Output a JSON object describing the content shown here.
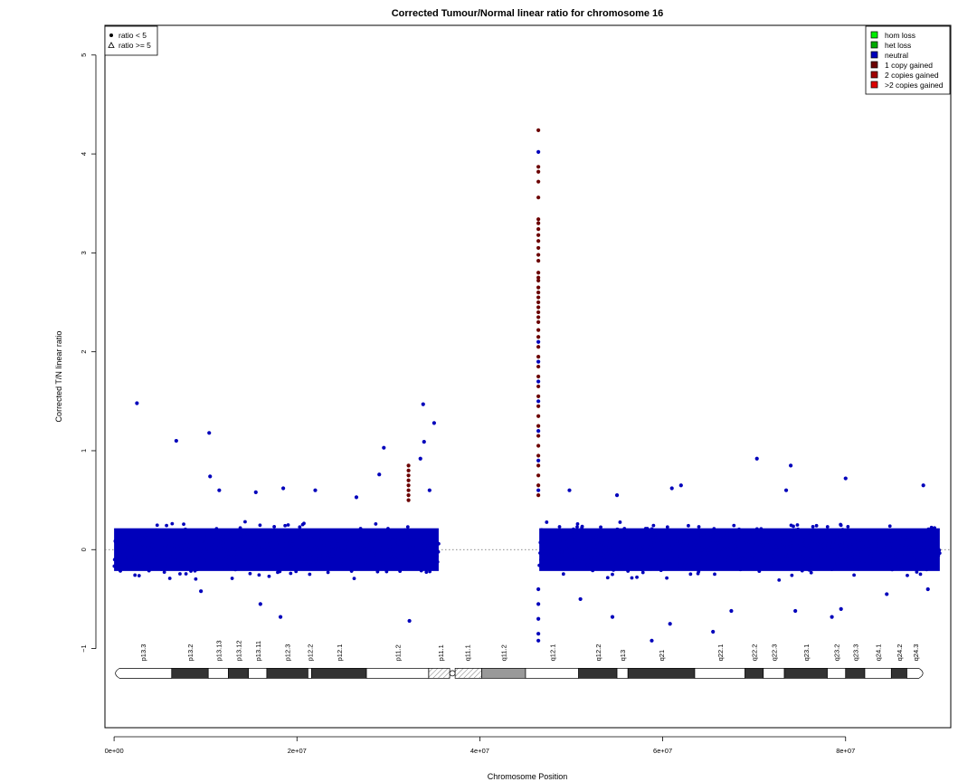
{
  "chart_data": {
    "type": "scatter",
    "title": "Corrected Tumour/Normal linear ratio for chromosome  16",
    "xlabel": "Chromosome Position",
    "ylabel": "Corrected T/N linear ratio",
    "xlim": [
      -1000000,
      91500000
    ],
    "ylim": [
      -1.8,
      5.3
    ],
    "x_ticks": [
      {
        "value": 0,
        "label": "0e+00"
      },
      {
        "value": 20000000,
        "label": "2e+07"
      },
      {
        "value": 40000000,
        "label": "4e+07"
      },
      {
        "value": 60000000,
        "label": "6e+07"
      },
      {
        "value": 80000000,
        "label": "8e+07"
      }
    ],
    "y_ticks": [
      {
        "value": -1,
        "label": "−1"
      },
      {
        "value": 0,
        "label": "0"
      },
      {
        "value": 1,
        "label": "1"
      },
      {
        "value": 2,
        "label": "2"
      },
      {
        "value": 3,
        "label": "3"
      },
      {
        "value": 4,
        "label": "4"
      },
      {
        "value": 5,
        "label": "5"
      }
    ],
    "reference_line": {
      "y": 0,
      "style": "dotted"
    },
    "shape_legend": {
      "position": "top-left",
      "entries": [
        {
          "label": "ratio < 5",
          "symbol": "dot"
        },
        {
          "label": "ratio >= 5",
          "symbol": "triangle"
        }
      ]
    },
    "color_legend": {
      "position": "top-right",
      "entries": [
        {
          "label": "hom loss",
          "color": "#00ee00"
        },
        {
          "label": "het loss",
          "color": "#00aa00"
        },
        {
          "label": "neutral",
          "color": "#0000bb"
        },
        {
          "label": "1 copy gained",
          "color": "#6b0000"
        },
        {
          "label": "2 copies gained",
          "color": "#a00000"
        },
        {
          "label": ">2 copies gained",
          "color": "#dd0000"
        }
      ]
    },
    "series": [
      {
        "name": "neutral",
        "color": "#0000bb",
        "segments": [
          {
            "x_range": [
              0,
              35500000
            ],
            "center": 0.0,
            "spread": 0.3
          },
          {
            "x_range": [
              46500000,
              90300000
            ],
            "center": 0.0,
            "spread": 0.3
          }
        ],
        "outliers": [
          [
            2500000,
            1.48
          ],
          [
            6800000,
            1.1
          ],
          [
            10400000,
            1.18
          ],
          [
            10500000,
            0.74
          ],
          [
            11500000,
            0.6
          ],
          [
            15500000,
            0.58
          ],
          [
            18500000,
            0.62
          ],
          [
            22000000,
            0.6
          ],
          [
            26500000,
            0.53
          ],
          [
            29000000,
            0.76
          ],
          [
            29500000,
            1.03
          ],
          [
            33500000,
            0.92
          ],
          [
            33900000,
            1.09
          ],
          [
            33800000,
            1.47
          ],
          [
            35000000,
            1.28
          ],
          [
            34500000,
            0.6
          ],
          [
            18200000,
            -0.68
          ],
          [
            32300000,
            -0.72
          ],
          [
            9500000,
            -0.42
          ],
          [
            16000000,
            -0.55
          ],
          [
            49800000,
            0.6
          ],
          [
            55000000,
            0.55
          ],
          [
            61000000,
            0.62
          ],
          [
            62000000,
            0.65
          ],
          [
            70300000,
            0.92
          ],
          [
            73500000,
            0.6
          ],
          [
            74000000,
            0.85
          ],
          [
            80000000,
            0.72
          ],
          [
            88500000,
            0.65
          ],
          [
            51000000,
            -0.5
          ],
          [
            54500000,
            -0.68
          ],
          [
            58800000,
            -0.92
          ],
          [
            60800000,
            -0.75
          ],
          [
            65500000,
            -0.83
          ],
          [
            67500000,
            -0.62
          ],
          [
            74500000,
            -0.62
          ],
          [
            78500000,
            -0.68
          ],
          [
            79500000,
            -0.6
          ],
          [
            84500000,
            -0.45
          ],
          [
            89000000,
            -0.4
          ]
        ],
        "spike": {
          "x": 46400000,
          "y_values": [
            -0.92,
            -0.85,
            -0.7,
            -0.55,
            -0.4,
            0.6,
            0.9,
            1.2,
            1.5,
            1.7,
            1.9,
            2.1,
            4.02
          ]
        }
      },
      {
        "name": "1 copy gained",
        "color": "#6b0000",
        "points": [
          [
            32200000,
            0.85
          ],
          [
            32200000,
            0.8
          ],
          [
            32200000,
            0.75
          ],
          [
            32200000,
            0.7
          ],
          [
            32200000,
            0.65
          ],
          [
            32200000,
            0.6
          ],
          [
            32200000,
            0.55
          ],
          [
            32200000,
            0.5
          ]
        ],
        "spike": {
          "x": 46400000,
          "y_values": [
            4.24,
            3.87,
            3.82,
            3.72,
            3.56,
            3.34,
            3.3,
            3.24,
            3.18,
            3.12,
            3.05,
            2.98,
            2.92,
            2.8,
            2.75,
            2.72,
            2.65,
            2.6,
            2.55,
            2.5,
            2.45,
            2.4,
            2.35,
            2.3,
            2.22,
            2.15,
            2.05,
            1.95,
            1.85,
            1.75,
            1.65,
            1.55,
            1.45,
            1.35,
            1.25,
            1.15,
            1.05,
            0.95,
            0.85,
            0.75,
            0.65,
            0.55
          ]
        }
      }
    ],
    "ideogram": {
      "y": -1.25,
      "centromere_x": 37000000,
      "bands": [
        {
          "name": "p13.3",
          "start": 0,
          "end": 6300000,
          "stain": "white"
        },
        {
          "name": "p13.2",
          "start": 6300000,
          "end": 10300000,
          "stain": "dark"
        },
        {
          "name": "p13.13",
          "start": 10300000,
          "end": 12500000,
          "stain": "white"
        },
        {
          "name": "p13.12",
          "start": 12500000,
          "end": 14700000,
          "stain": "dark"
        },
        {
          "name": "p13.11",
          "start": 14700000,
          "end": 16700000,
          "stain": "white"
        },
        {
          "name": "p12.3",
          "start": 16700000,
          "end": 21200000,
          "stain": "dark"
        },
        {
          "name": "p12.2",
          "start": 21200000,
          "end": 21600000,
          "stain": "white"
        },
        {
          "name": "p12.1",
          "start": 21600000,
          "end": 27600000,
          "stain": "dark"
        },
        {
          "name": "p11.2",
          "start": 27600000,
          "end": 34400000,
          "stain": "white"
        },
        {
          "name": "p11.1",
          "start": 34400000,
          "end": 37000000,
          "stain": "hatched"
        },
        {
          "name": "q11.1",
          "start": 37000000,
          "end": 40200000,
          "stain": "hatched"
        },
        {
          "name": "q11.2",
          "start": 40200000,
          "end": 45000000,
          "stain": "gray"
        },
        {
          "name": "q12.1",
          "start": 45000000,
          "end": 50800000,
          "stain": "white"
        },
        {
          "name": "q12.2",
          "start": 50800000,
          "end": 55000000,
          "stain": "dark"
        },
        {
          "name": "q13",
          "start": 55000000,
          "end": 56200000,
          "stain": "white"
        },
        {
          "name": "q21",
          "start": 56200000,
          "end": 63500000,
          "stain": "dark"
        },
        {
          "name": "q22.1",
          "start": 63500000,
          "end": 69000000,
          "stain": "white"
        },
        {
          "name": "q22.2",
          "start": 69000000,
          "end": 71000000,
          "stain": "dark"
        },
        {
          "name": "q22.3",
          "start": 71000000,
          "end": 73300000,
          "stain": "white"
        },
        {
          "name": "q23.1",
          "start": 73300000,
          "end": 78000000,
          "stain": "dark"
        },
        {
          "name": "q23.2",
          "start": 78000000,
          "end": 80000000,
          "stain": "white"
        },
        {
          "name": "q23.3",
          "start": 80000000,
          "end": 82100000,
          "stain": "dark"
        },
        {
          "name": "q24.1",
          "start": 82100000,
          "end": 85000000,
          "stain": "white"
        },
        {
          "name": "q24.2",
          "start": 85000000,
          "end": 86700000,
          "stain": "dark"
        },
        {
          "name": "q24.3",
          "start": 86700000,
          "end": 88600000,
          "stain": "white"
        }
      ]
    }
  }
}
